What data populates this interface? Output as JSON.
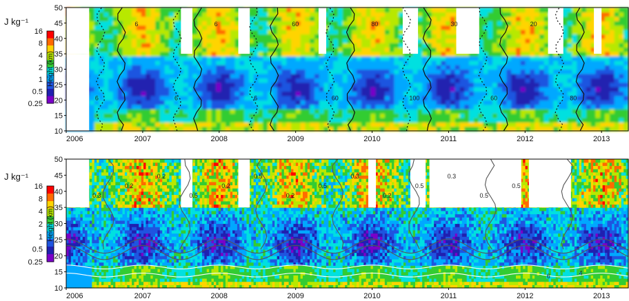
{
  "colorbar": {
    "unit_label": "J kg⁻¹",
    "tick_labels": [
      "16",
      "8",
      "4",
      "2",
      "1",
      "0.5",
      "0.25"
    ],
    "colors": [
      "#ff0000",
      "#ff6a00",
      "#ffd400",
      "#b8e800",
      "#33cc33",
      "#00e0e0",
      "#00a8ff",
      "#1f55e0",
      "#2020b0",
      "#7a00c8"
    ]
  },
  "chart_data": [
    {
      "type": "heatmap",
      "panel": "upper",
      "xlabel": "",
      "ylabel": "Height (km)",
      "x_ticks": [
        "2006",
        "2007",
        "2008",
        "2009",
        "2010",
        "2011",
        "2012",
        "2013"
      ],
      "y_ticks": [
        10,
        15,
        20,
        25,
        30,
        35,
        40,
        45,
        50
      ],
      "xlim": [
        2006.0,
        2013.35
      ],
      "ylim": [
        10,
        50
      ],
      "data_gaps_above_35km": [
        [
          2006.0,
          2006.3
        ],
        [
          2007.5,
          2007.65
        ],
        [
          2008.25,
          2008.4
        ],
        [
          2009.3,
          2009.4
        ],
        [
          2010.4,
          2010.6
        ],
        [
          2011.1,
          2011.4
        ],
        [
          2012.3,
          2012.5
        ],
        [
          2012.9,
          2013.0
        ]
      ],
      "contour_labels": [
        "6",
        "6",
        "6",
        "6",
        "6",
        "60",
        "60",
        "80",
        "100",
        "30",
        "60",
        "20",
        "80"
      ]
    },
    {
      "type": "heatmap",
      "panel": "lower",
      "xlabel": "",
      "ylabel": "Height (km)",
      "x_ticks": [
        "2006",
        "2007",
        "2008",
        "2009",
        "2010",
        "2011",
        "2012",
        "2013"
      ],
      "y_ticks": [
        10,
        15,
        20,
        25,
        30,
        35,
        40,
        45,
        50
      ],
      "xlim": [
        2006.0,
        2013.35
      ],
      "ylim": [
        10,
        50
      ],
      "data_gaps_above_35km": [
        [
          2006.0,
          2006.3
        ],
        [
          2007.5,
          2007.65
        ],
        [
          2008.25,
          2008.4
        ],
        [
          2009.95,
          2010.05
        ],
        [
          2010.5,
          2010.7
        ],
        [
          2010.75,
          2011.95
        ],
        [
          2012.05,
          2012.6
        ]
      ],
      "contour_labels": [
        "0.3",
        "0.2",
        "0.2",
        "0.5",
        "0.2",
        "0.5",
        "0.2",
        "0.5",
        "0.3",
        "0.2",
        "0.5",
        "0.3",
        "0.5",
        "0.5",
        "6",
        "4"
      ]
    }
  ]
}
